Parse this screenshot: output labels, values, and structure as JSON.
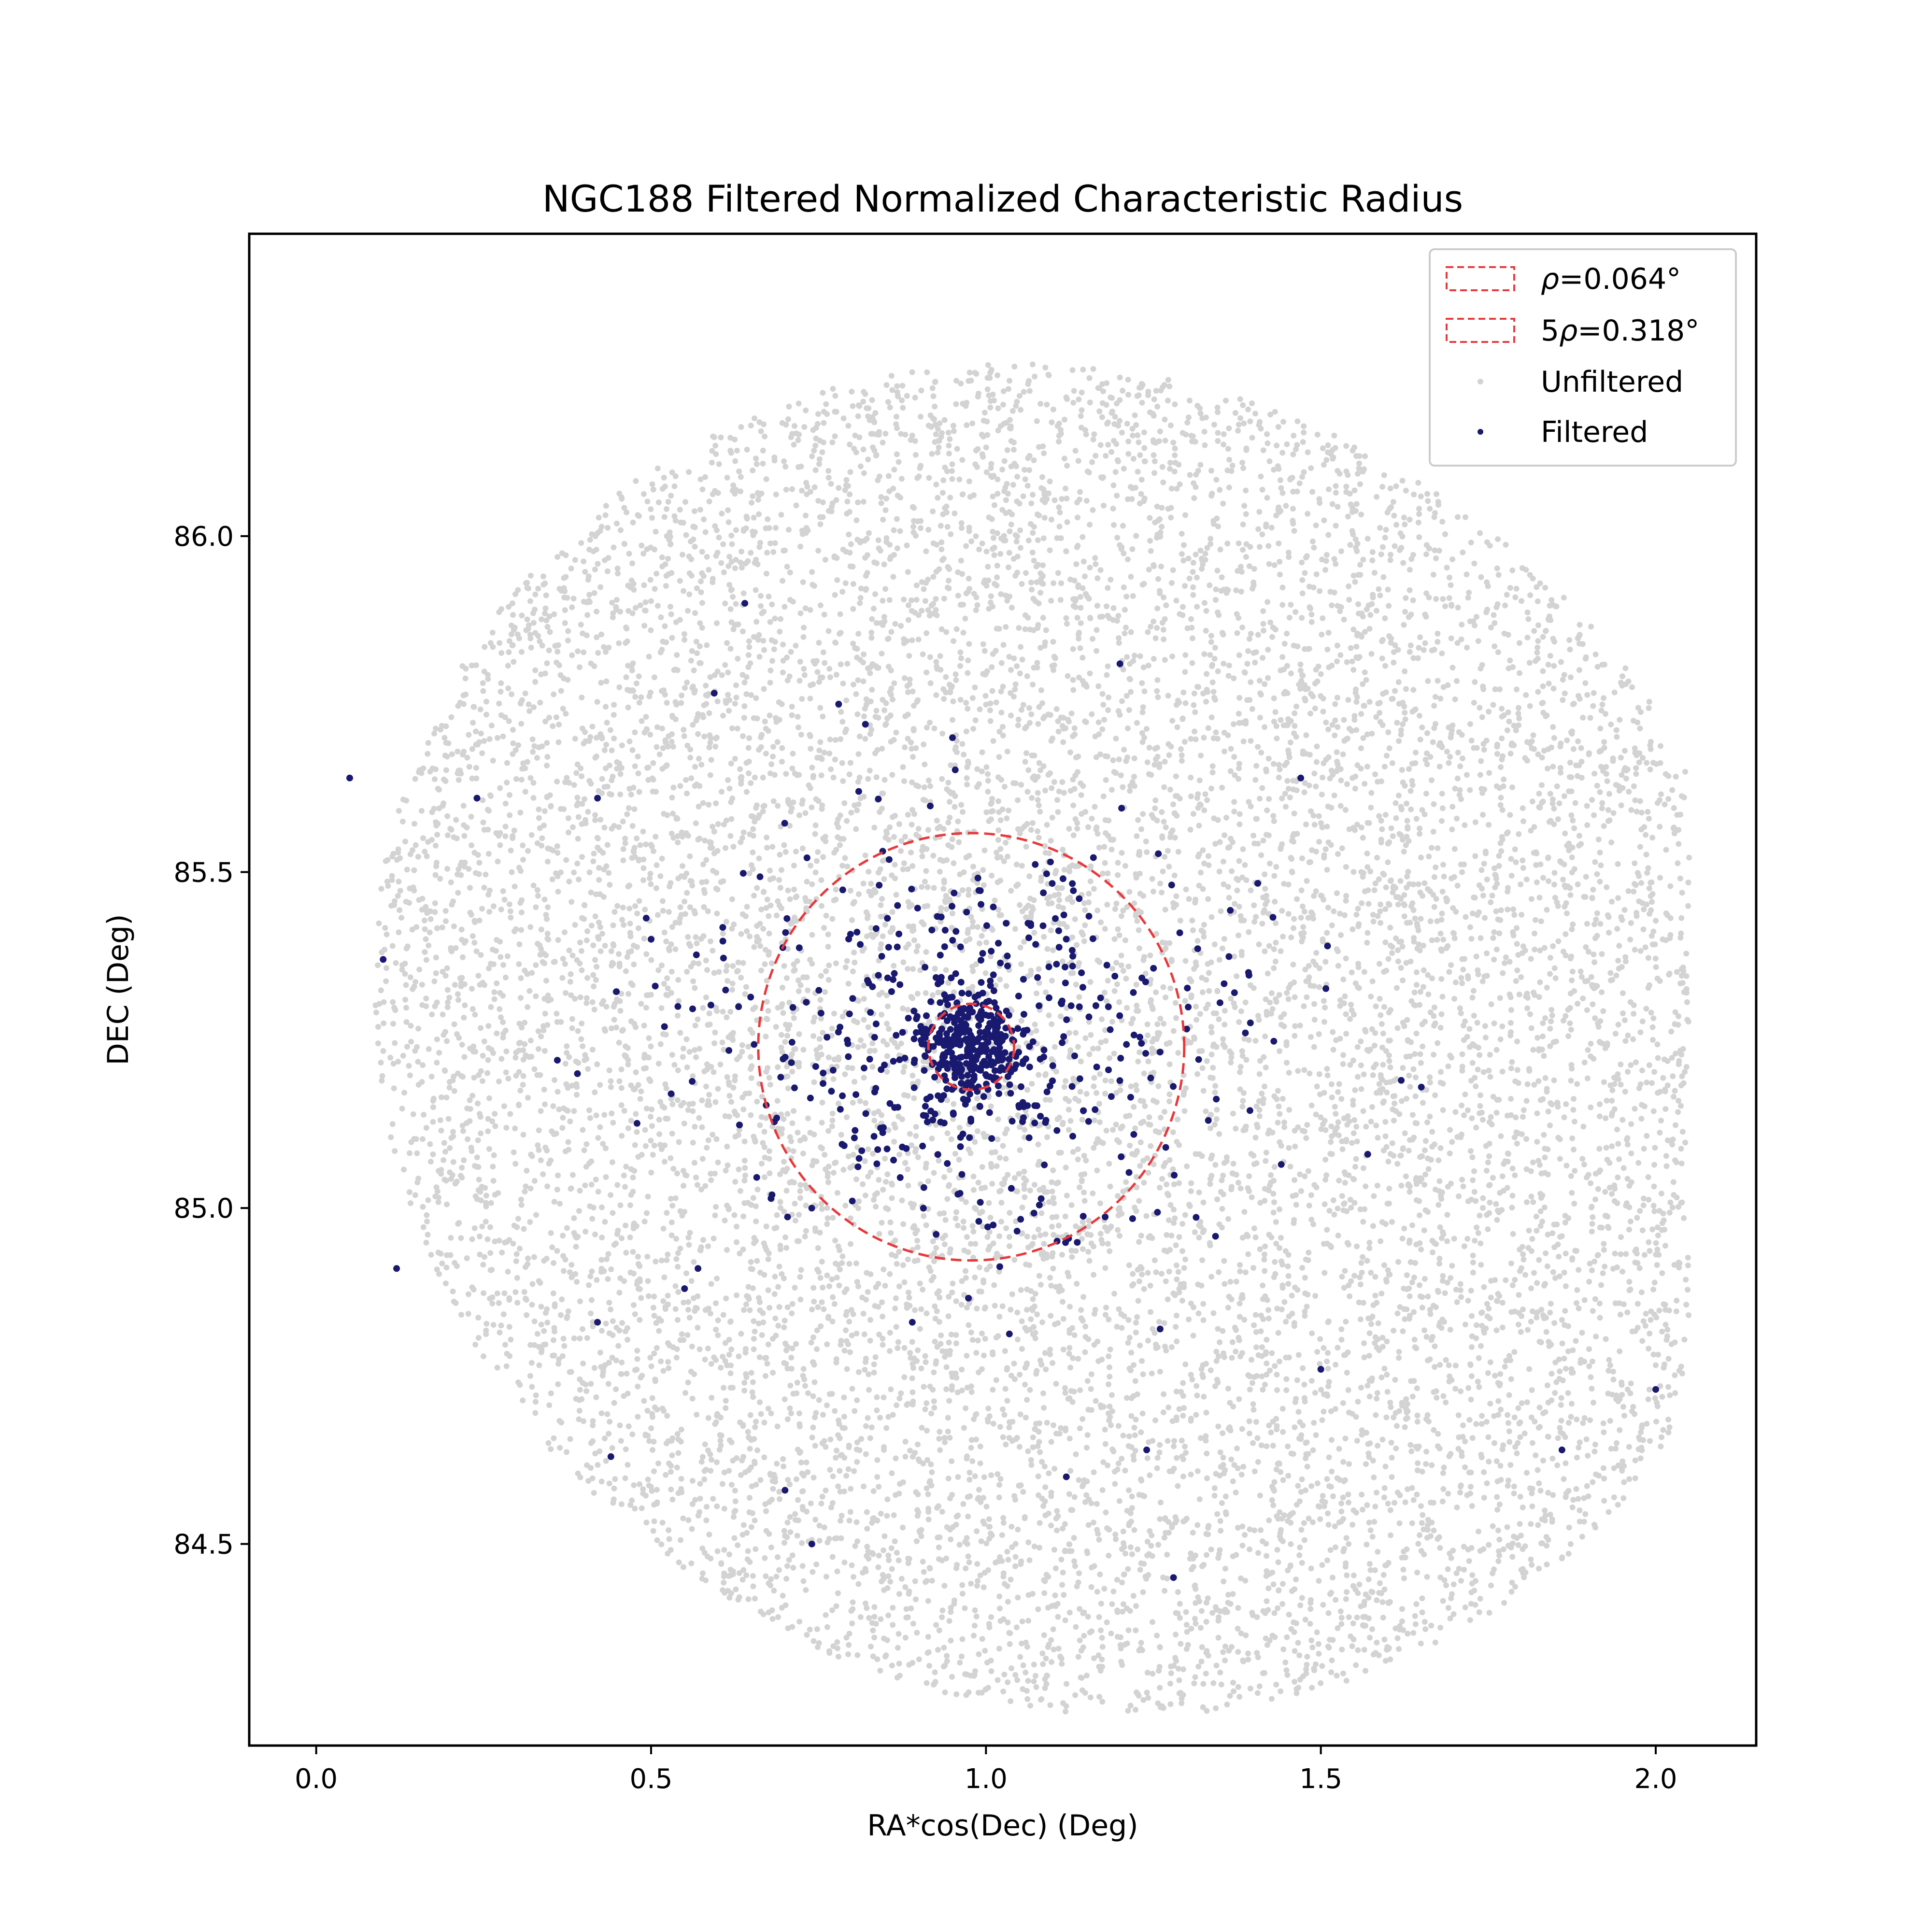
{
  "chart_data": {
    "type": "scatter",
    "title": "NGC188 Filtered Normalized Characteristic Radius",
    "xlabel": "RA*cos(Dec) (Deg)",
    "ylabel": "DEC (Deg)",
    "xlim": [
      -0.1,
      2.15
    ],
    "ylim": [
      84.2,
      86.45
    ],
    "x_ticks": [
      0.0,
      0.5,
      1.0,
      1.5,
      2.0
    ],
    "x_tick_labels": [
      "0.0",
      "0.5",
      "1.0",
      "1.5",
      "2.0"
    ],
    "y_ticks": [
      84.5,
      85.0,
      85.5,
      86.0
    ],
    "y_tick_labels": [
      "84.5",
      "85.0",
      "85.5",
      "86.0"
    ],
    "grid": false,
    "legend_position": "top-right",
    "legend": [
      {
        "label_prefix": "",
        "label_symbol": "ρ",
        "label_suffix": "=0.064°",
        "kind": "circle-outline"
      },
      {
        "label_prefix": "5",
        "label_symbol": "ρ",
        "label_suffix": "=0.318°",
        "kind": "circle-outline"
      },
      {
        "label": "Unfiltered",
        "kind": "marker"
      },
      {
        "label": "Filtered",
        "kind": "marker"
      }
    ],
    "circles": [
      {
        "name": "rho",
        "center": [
          0.978,
          85.24
        ],
        "radius_deg": 0.064,
        "color": "#e8393c",
        "style": "dashed"
      },
      {
        "name": "5rho",
        "center": [
          0.978,
          85.24
        ],
        "radius_deg": 0.318,
        "color": "#e8393c",
        "style": "dashed"
      }
    ],
    "series": [
      {
        "name": "Unfiltered",
        "color": "#d3d3d3",
        "distribution": {
          "kind": "uniform-ellipse-field",
          "center": [
            1.13,
            85.25
          ],
          "semi_axes_deg": [
            1.07,
            0.98
          ],
          "rotation_deg": -32,
          "count": 12000
        }
      },
      {
        "name": "Filtered",
        "color": "#191970",
        "distribution": {
          "kind": "concentrated-cluster",
          "center": [
            0.978,
            85.24
          ],
          "core_scale_deg": 0.035,
          "halo_scale_deg": 0.17,
          "core_count": 260,
          "halo_count": 420
        },
        "values_x": [
          0.05,
          0.24,
          0.1,
          0.42,
          0.5,
          0.36,
          0.39,
          0.12,
          0.42,
          0.44,
          0.64,
          0.78,
          0.82,
          0.95,
          0.81,
          1.2,
          1.47,
          1.51,
          1.62,
          1.65,
          1.57,
          1.86,
          2.0,
          1.5,
          1.24,
          1.26,
          1.28,
          1.12,
          0.74,
          0.7,
          0.89,
          0.55,
          0.57,
          0.53,
          0.52,
          0.54
        ],
        "values_y": [
          85.64,
          85.61,
          85.37,
          85.61,
          85.4,
          85.22,
          85.2,
          84.91,
          84.83,
          84.63,
          85.9,
          85.75,
          85.72,
          85.7,
          85.62,
          85.81,
          85.64,
          85.39,
          85.19,
          85.18,
          85.08,
          84.64,
          84.73,
          84.76,
          84.64,
          84.82,
          84.45,
          84.6,
          84.5,
          84.58,
          84.83,
          84.88,
          84.91,
          85.17,
          85.27,
          85.3
        ]
      }
    ]
  }
}
